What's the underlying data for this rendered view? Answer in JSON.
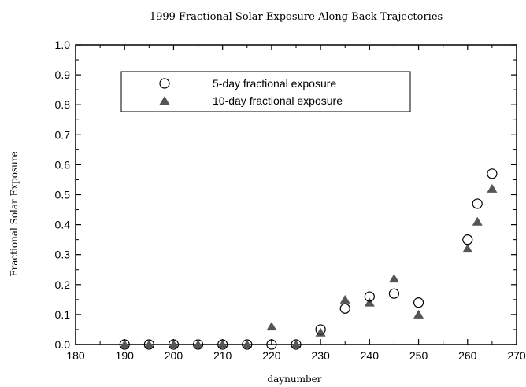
{
  "chart_data": {
    "type": "scatter",
    "title": "1999 Fractional Solar Exposure Along Back Trajectories",
    "xlabel": "daynumber",
    "ylabel": "Fractional Solar Exposure",
    "xlim": [
      180,
      270
    ],
    "ylim": [
      0.0,
      1.0
    ],
    "xticks": [
      "180",
      "190",
      "200",
      "210",
      "220",
      "230",
      "240",
      "250",
      "260",
      "270"
    ],
    "yticks": [
      "0.0",
      "0.1",
      "0.2",
      "0.3",
      "0.4",
      "0.5",
      "0.6",
      "0.7",
      "0.8",
      "0.9",
      "1.0"
    ],
    "legend_position": "top-left",
    "grid": false,
    "series": [
      {
        "name": "5-day fractional exposure",
        "marker": "open-circle",
        "color": "#000000",
        "points": [
          {
            "x": 190,
            "y": 0.0
          },
          {
            "x": 195,
            "y": 0.0
          },
          {
            "x": 200,
            "y": 0.0
          },
          {
            "x": 205,
            "y": 0.0
          },
          {
            "x": 210,
            "y": 0.0
          },
          {
            "x": 215,
            "y": 0.0
          },
          {
            "x": 220,
            "y": 0.0
          },
          {
            "x": 225,
            "y": 0.0
          },
          {
            "x": 230,
            "y": 0.05
          },
          {
            "x": 235,
            "y": 0.12
          },
          {
            "x": 240,
            "y": 0.16
          },
          {
            "x": 245,
            "y": 0.17
          },
          {
            "x": 250,
            "y": 0.14
          },
          {
            "x": 260,
            "y": 0.35
          },
          {
            "x": 262,
            "y": 0.47
          },
          {
            "x": 265,
            "y": 0.57
          }
        ]
      },
      {
        "name": "10-day fractional exposure",
        "marker": "filled-triangle",
        "color": "#555555",
        "points": [
          {
            "x": 190,
            "y": 0.0
          },
          {
            "x": 195,
            "y": 0.0
          },
          {
            "x": 200,
            "y": 0.0
          },
          {
            "x": 205,
            "y": 0.0
          },
          {
            "x": 210,
            "y": 0.0
          },
          {
            "x": 215,
            "y": 0.0
          },
          {
            "x": 220,
            "y": 0.06
          },
          {
            "x": 225,
            "y": 0.0
          },
          {
            "x": 230,
            "y": 0.04
          },
          {
            "x": 235,
            "y": 0.15
          },
          {
            "x": 240,
            "y": 0.14
          },
          {
            "x": 245,
            "y": 0.22
          },
          {
            "x": 250,
            "y": 0.1
          },
          {
            "x": 260,
            "y": 0.32
          },
          {
            "x": 262,
            "y": 0.41
          },
          {
            "x": 265,
            "y": 0.52
          }
        ]
      }
    ]
  }
}
